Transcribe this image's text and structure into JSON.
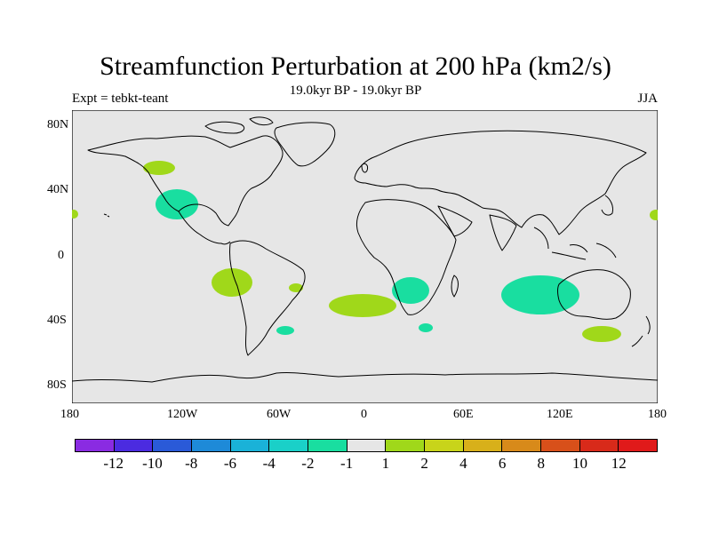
{
  "title": "Streamfunction Perturbation at 200 hPa (km2/s)",
  "left_string": "Expt = tebkt-teant",
  "center_string": "19.0kyr BP - 19.0kyr BP",
  "right_string": "JJA",
  "lat_labels": [
    "80N",
    "40N",
    "0",
    "40S",
    "80S"
  ],
  "lon_labels": [
    "180",
    "120W",
    "60W",
    "0",
    "60E",
    "120E",
    "180"
  ],
  "colorbar": {
    "labels": [
      "-12",
      "-10",
      "-8",
      "-6",
      "-4",
      "-2",
      "-1",
      "1",
      "2",
      "4",
      "6",
      "8",
      "10",
      "12"
    ],
    "colors": [
      "#8a2be2",
      "#4b2be0",
      "#2a5ad8",
      "#1e8ad8",
      "#1ab2d8",
      "#1ad0c8",
      "#19dea0",
      "#e6e6e6",
      "#a0d81a",
      "#c8d41a",
      "#d8b01a",
      "#d88a1a",
      "#d8501a",
      "#d82a1a",
      "#e01a1a"
    ]
  },
  "anomalies": [
    {
      "name": "north-pacific-neg",
      "sign": "negative",
      "color": "#19dea0"
    },
    {
      "name": "alaska-pos",
      "sign": "positive",
      "color": "#a0d81a"
    },
    {
      "name": "se-pacific-pos",
      "sign": "positive",
      "color": "#a0d81a"
    },
    {
      "name": "south-atlantic-pos",
      "sign": "positive",
      "color": "#a0d81a"
    },
    {
      "name": "brazil-coast-pos",
      "sign": "positive",
      "color": "#a0d81a"
    },
    {
      "name": "southern-africa-neg",
      "sign": "negative",
      "color": "#19dea0"
    },
    {
      "name": "indian-ocean-neg",
      "sign": "negative",
      "color": "#19dea0"
    },
    {
      "name": "tasman-pos",
      "sign": "positive",
      "color": "#a0d81a"
    },
    {
      "name": "far-south-atlantic-neg",
      "sign": "negative",
      "color": "#19dea0"
    },
    {
      "name": "indian-small-neg",
      "sign": "negative",
      "color": "#19dea0"
    },
    {
      "name": "west-edge-pos",
      "sign": "positive",
      "color": "#a0d81a"
    },
    {
      "name": "east-edge-pos",
      "sign": "positive",
      "color": "#a0d81a"
    }
  ]
}
